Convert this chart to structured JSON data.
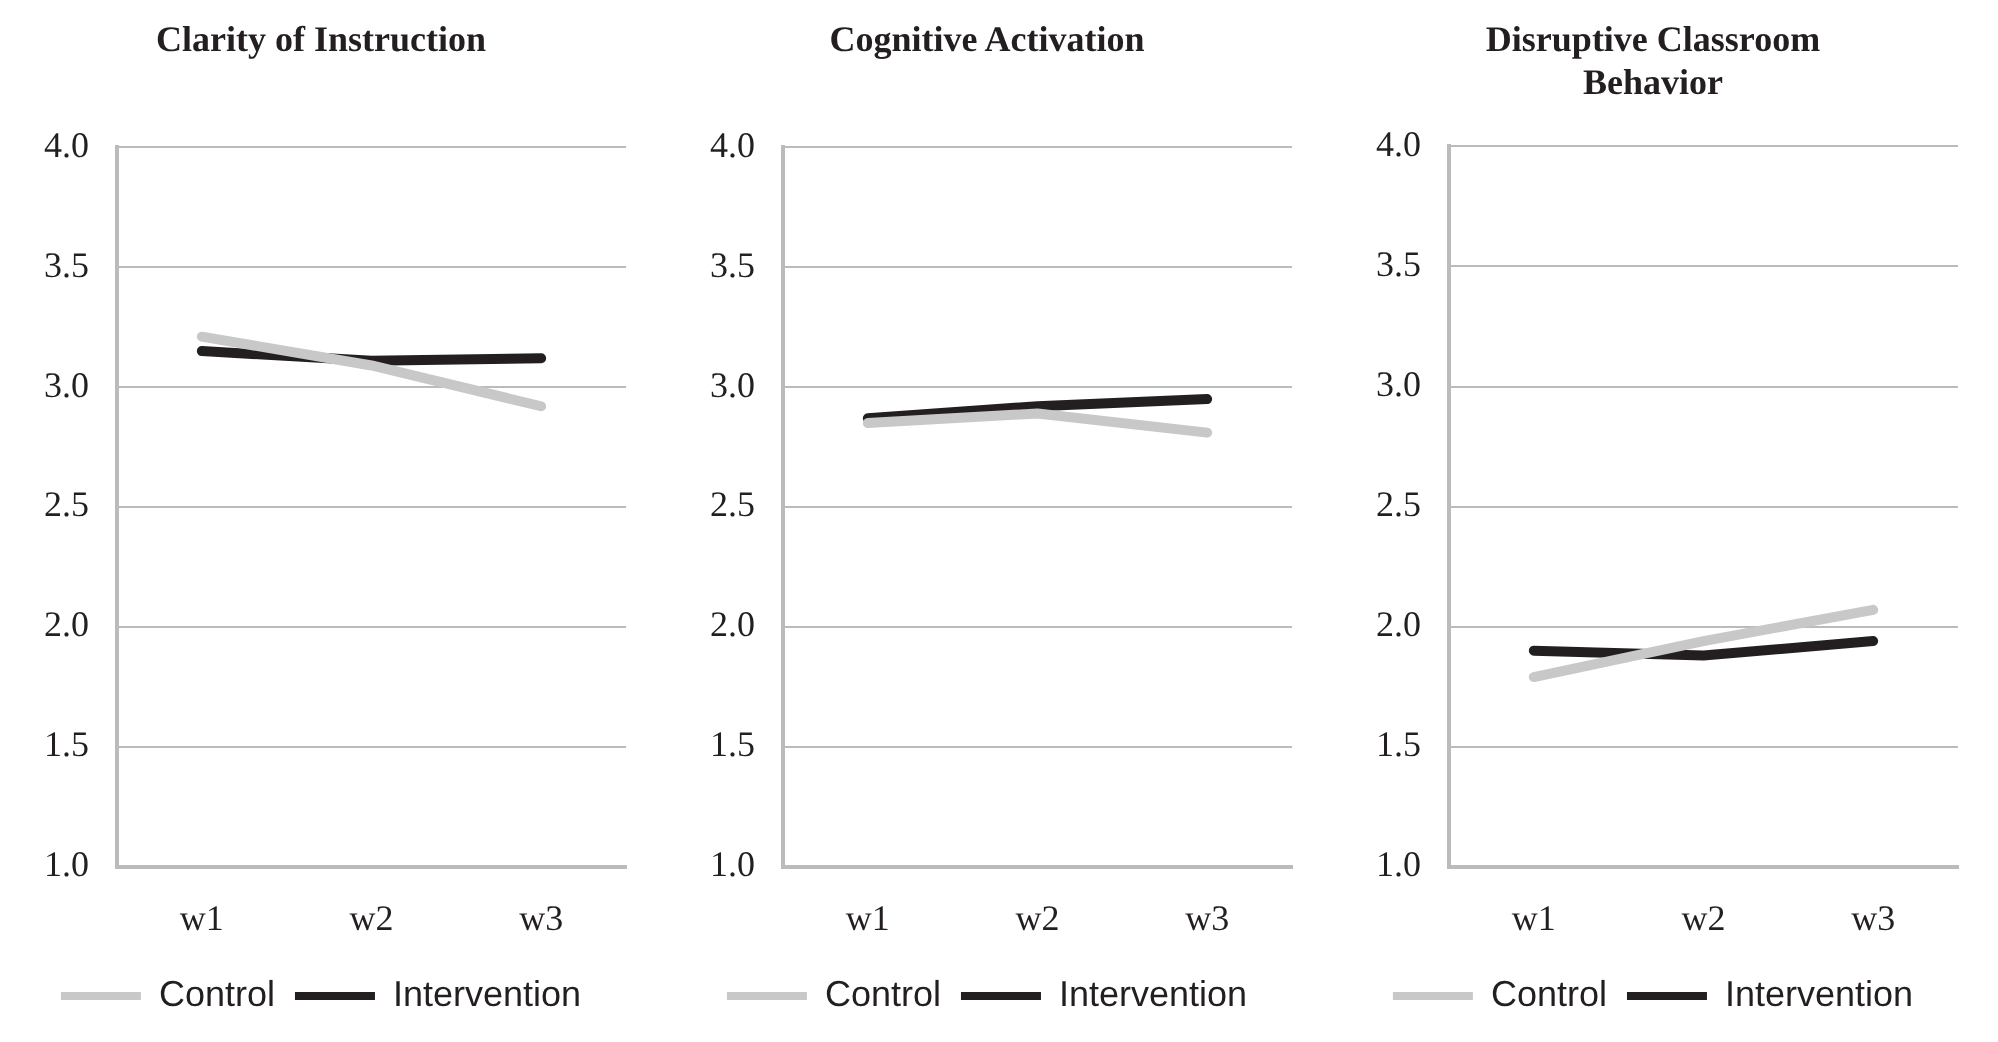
{
  "chart_data": [
    {
      "type": "line",
      "title": "Clarity of Instruction",
      "categories": [
        "w1",
        "w2",
        "w3"
      ],
      "series": [
        {
          "name": "Control",
          "color": "#c8c8c8",
          "values": [
            3.21,
            3.09,
            2.92
          ]
        },
        {
          "name": "Intervention",
          "color": "#231f20",
          "values": [
            3.15,
            3.11,
            3.12
          ]
        }
      ],
      "ylim": [
        1.0,
        4.0
      ],
      "yticks": [
        {
          "value": 1,
          "label": "1.0"
        },
        {
          "value": 1.5,
          "label": "1.5"
        },
        {
          "value": 2,
          "label": "2.0"
        },
        {
          "value": 2.5,
          "label": "2.5"
        },
        {
          "value": 3,
          "label": "3.0"
        },
        {
          "value": 3.5,
          "label": "3.5"
        },
        {
          "value": 4,
          "label": "4.0"
        }
      ],
      "grid": "y",
      "legend": "bottom",
      "marker": "none",
      "line_style": "solid"
    },
    {
      "type": "line",
      "title": "Cognitive Activation",
      "categories": [
        "w1",
        "w2",
        "w3"
      ],
      "series": [
        {
          "name": "Control",
          "color": "#c8c8c8",
          "values": [
            2.85,
            2.89,
            2.81
          ]
        },
        {
          "name": "Intervention",
          "color": "#231f20",
          "values": [
            2.87,
            2.92,
            2.95
          ]
        }
      ],
      "ylim": [
        1.0,
        4.0
      ],
      "yticks": [
        {
          "value": 1,
          "label": "1.0"
        },
        {
          "value": 1.5,
          "label": "1.5"
        },
        {
          "value": 2,
          "label": "2.0"
        },
        {
          "value": 2.5,
          "label": "2.5"
        },
        {
          "value": 3,
          "label": "3.0"
        },
        {
          "value": 3.5,
          "label": "3.5"
        },
        {
          "value": 4,
          "label": "4.0"
        }
      ],
      "grid": "y",
      "legend": "bottom",
      "marker": "none",
      "line_style": "solid"
    },
    {
      "type": "line",
      "title": "Disruptive Classroom Behavior",
      "categories": [
        "w1",
        "w2",
        "w3"
      ],
      "series": [
        {
          "name": "Control",
          "color": "#c8c8c8",
          "values": [
            1.79,
            1.94,
            2.07
          ]
        },
        {
          "name": "Intervention",
          "color": "#231f20",
          "values": [
            1.9,
            1.88,
            1.94
          ]
        }
      ],
      "ylim": [
        1.0,
        4.0
      ],
      "yticks": [
        {
          "value": 1,
          "label": "1.0"
        },
        {
          "value": 1.5,
          "label": "1.5"
        },
        {
          "value": 2,
          "label": "2.0"
        },
        {
          "value": 2.5,
          "label": "2.5"
        },
        {
          "value": 3,
          "label": "3.0"
        },
        {
          "value": 3.5,
          "label": "3.5"
        },
        {
          "value": 4,
          "label": "4.0"
        }
      ],
      "grid": "y",
      "legend": "bottom",
      "marker": "none",
      "line_style": "solid"
    }
  ]
}
